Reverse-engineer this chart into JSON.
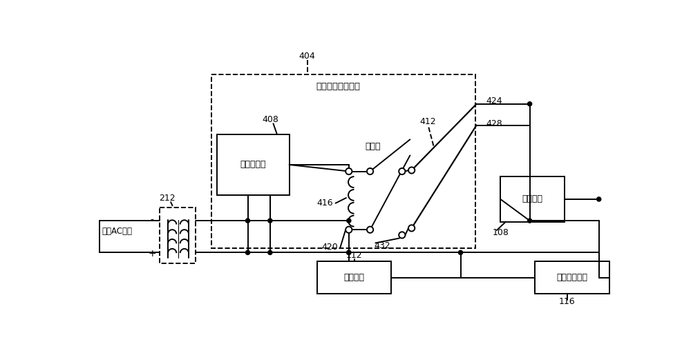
{
  "bg_color": "#ffffff",
  "lw": 1.4,
  "lw_thin": 1.0,
  "box_labels": {
    "leak_sensor": "泄漏传感器",
    "control_module": "控制模块",
    "circulation_fan": "循环风机",
    "temp_control": "温度控制装置",
    "relay": "继电器",
    "mitigation_circuit": "泄漏缓解控制电路",
    "input_ac": "输入AC电力"
  },
  "figsize": [
    10.0,
    4.99
  ],
  "dpi": 100,
  "font_size": 9,
  "font_size_sm": 8
}
